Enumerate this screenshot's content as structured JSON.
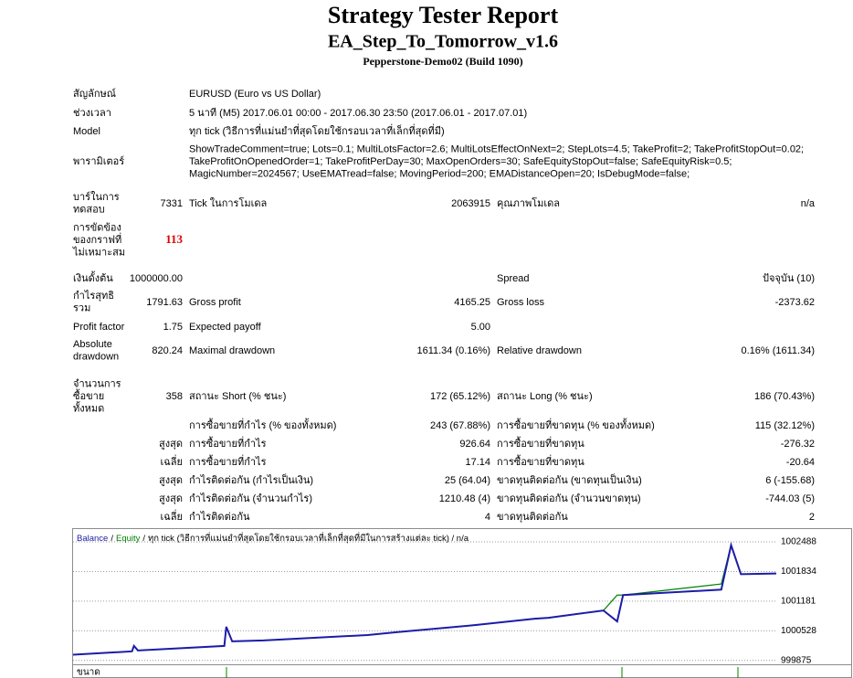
{
  "header": {
    "title": "Strategy Tester Report",
    "subtitle": "EA_Step_To_Tomorrow_v1.6",
    "server": "Pepperstone-Demo02 (Build 1090)"
  },
  "rows": [
    {
      "label": "สัญลักษณ์",
      "text": "EURUSD (Euro vs US Dollar)"
    },
    {
      "label": "ช่วงเวลา",
      "text": "5 นาที (M5) 2017.06.01 00:00 - 2017.06.30 23:50 (2017.06.01 - 2017.07.01)"
    },
    {
      "label": "Model",
      "text": "ทุก tick (วิธีการที่แม่นยำที่สุดโดยใช้กรอบเวลาที่เล็กที่สุดที่มี)"
    },
    {
      "label": "พารามิเตอร์",
      "text": [
        "ShowTradeComment=true; Lots=0.1; MultiLotsFactor=2.6; MultiLotsEffectOnNext=2; StepLots=4.5; TakeProfit=2; TakeProfitStopOut=0.02;",
        "TakeProfitOnOpenedOrder=1; TakeProfitPerDay=30; MaxOpenOrders=30; SafeEquityStopOut=false; SafeEquityRisk=0.5;",
        "MagicNumber=2024567; UseEMATread=false; MovingPeriod=200; EMADistanceOpen=20; IsDebugMode=false;"
      ]
    },
    {
      "label": [
        "บาร์ในการ",
        "ทดสอบ"
      ],
      "value": "7331",
      "label2": "Tick ในการโมเดล",
      "value2": "2063915",
      "label3": "คุณภาพโมเดล",
      "value3": "n/a"
    },
    {
      "label": [
        "การขัดข้อง",
        "ของกราฟที่",
        "ไม่เหมาะสม"
      ],
      "value": "113",
      "value_color": "#e00000"
    },
    {
      "label": "เงินดั้งต้น",
      "value": "1000000.00",
      "label3": "Spread",
      "value3": "ปัจจุบัน (10)"
    },
    {
      "label": [
        "กำไรสุทธิ",
        "รวม"
      ],
      "value": "1791.63",
      "label2": "Gross profit",
      "value2": "4165.25",
      "label3": "Gross loss",
      "value3": "-2373.62"
    },
    {
      "label": "Profit factor",
      "value": "1.75",
      "label2": "Expected payoff",
      "value2": "5.00"
    },
    {
      "label": [
        "Absolute",
        "drawdown"
      ],
      "value": "820.24",
      "label2": "Maximal drawdown",
      "value2": "1611.34 (0.16%)",
      "label3": "Relative drawdown",
      "value3": "0.16% (1611.34)"
    },
    {
      "label": [
        "จำนวนการ",
        "ซื้อขาย",
        "ทั้งหมด"
      ],
      "value": "358",
      "label2": "สถานะ Short (% ชนะ)",
      "value2": "172 (65.12%)",
      "label3": "สถานะ Long (% ชนะ)",
      "value3": "186 (70.43%)"
    },
    {
      "label2": "การซื้อขายที่กำไร (% ของทั้งหมด)",
      "value2": "243 (67.88%)",
      "label3": "การซื้อขายที่ขาดทุน (% ของทั้งหมด)",
      "value3": "115 (32.12%)"
    },
    {
      "value": "สูงสุด",
      "label2": "การซื้อขายที่กำไร",
      "value2": "926.64",
      "label3": "การซื้อขายที่ขาดทุน",
      "value3": "-276.32"
    },
    {
      "value": "เฉลี่ย",
      "label2": "การซื้อขายที่กำไร",
      "value2": "17.14",
      "label3": "การซื้อขายที่ขาดทุน",
      "value3": "-20.64"
    },
    {
      "value": "สูงสุด",
      "label2": "กำไรติดต่อกัน (กำไรเป็นเงิน)",
      "value2": "25 (64.04)",
      "label3": "ขาดทุนติดต่อกัน (ขาดทุนเป็นเงิน)",
      "value3": "6 (-155.68)"
    },
    {
      "value": "สูงสุด",
      "label2": "กำไรติดต่อกัน (จำนวนกำไร)",
      "value2": "1210.48 (4)",
      "label3": "ขาดทุนติดต่อกัน (จำนวนขาดทุน)",
      "value3": "-744.03 (5)"
    },
    {
      "value": "เฉลี่ย",
      "label2": "กำไรติดต่อกัน",
      "value2": "4",
      "label3": "ขาดทุนติดต่อกัน",
      "value3": "2"
    }
  ],
  "chart_data": {
    "type": "line",
    "legend_separator": "/",
    "description": "ทุก tick (วิธีการที่แม่นยำที่สุดโดยใช้กรอบเวลาที่เล็กที่สุดที่มีในการสร้างแต่ละ tick) / n/a",
    "volume_label": "ขนาด",
    "x": [
      0,
      30,
      31,
      33,
      77,
      78,
      81,
      97,
      150,
      164,
      205,
      235,
      242,
      270,
      277,
      280,
      330,
      335,
      340,
      358
    ],
    "series": [
      {
        "name": "Balance",
        "color": "#1c1ca8",
        "values": [
          1000000,
          1000075,
          1000195,
          1000095,
          1000195,
          1000615,
          1000295,
          1000315,
          1000435,
          1000495,
          1000655,
          1000795,
          1000815,
          1000975,
          1000735,
          1001315,
          1001435,
          1002415,
          1001775,
          1001790
        ]
      },
      {
        "name": "Equity",
        "color": "#008000",
        "values": [
          1000000,
          1000075,
          1000195,
          1000095,
          1000195,
          1000615,
          1000295,
          1000315,
          1000435,
          1000495,
          1000655,
          1000795,
          1000815,
          1000975,
          1001315,
          1001315,
          1001560,
          1002415,
          1001775,
          1001790
        ]
      }
    ],
    "xlim": [
      0,
      358
    ],
    "ylim": [
      999850,
      1002750
    ],
    "yticks": [
      999875,
      1000528,
      1001181,
      1001834,
      1002488
    ],
    "grid": true
  }
}
